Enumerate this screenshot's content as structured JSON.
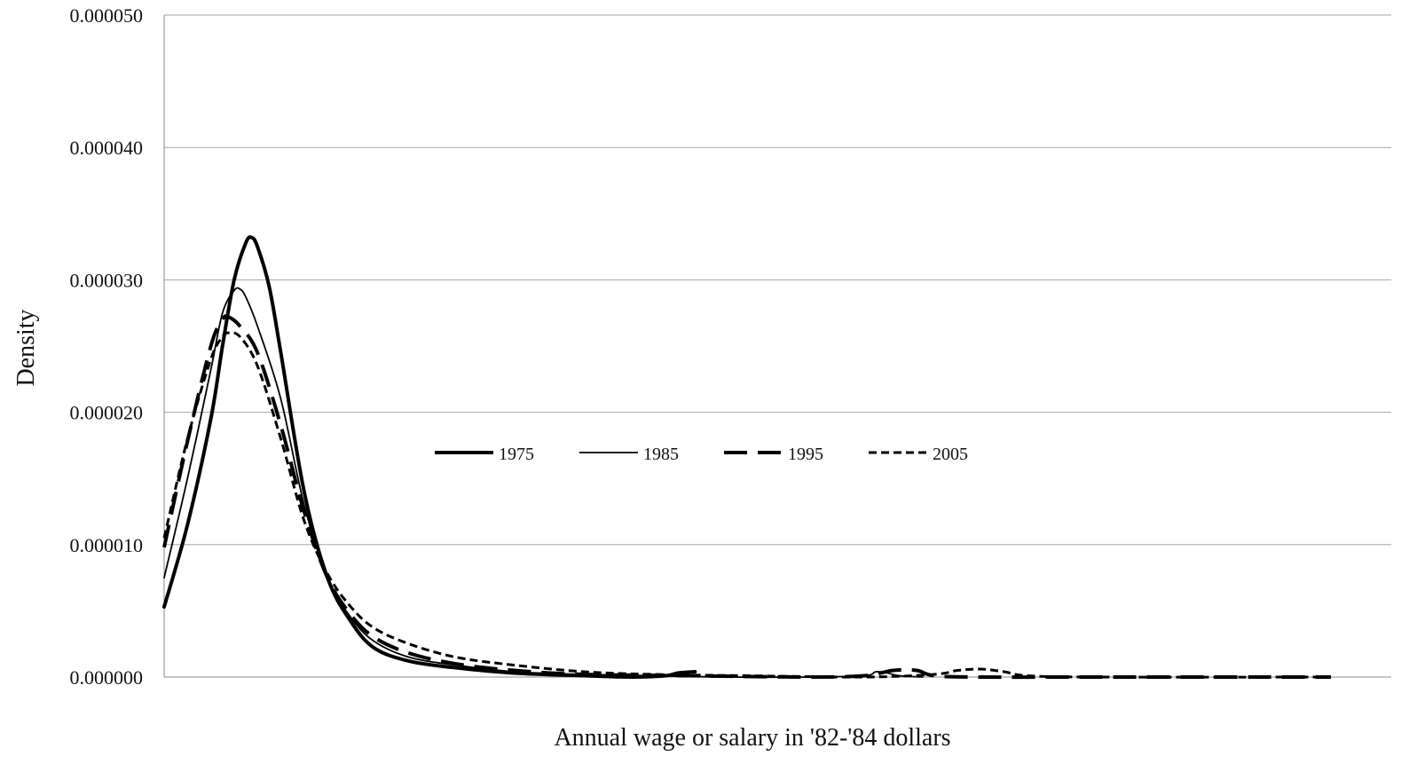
{
  "chart_data": {
    "type": "line",
    "title": "",
    "xlabel": "Annual wage or salary in '82-'84 dollars",
    "ylabel": "Density",
    "ylim": [
      0,
      5e-05
    ],
    "xlim": [
      0,
      1
    ],
    "y_ticks": [
      "0.000000",
      "0.000010",
      "0.000020",
      "0.000030",
      "0.000040",
      "0.000050"
    ],
    "y_tick_values": [
      0,
      1e-05,
      2e-05,
      3e-05,
      4e-05,
      5e-05
    ],
    "x_ticks": [],
    "grid": "horizontal",
    "legend_position": "center",
    "series": [
      {
        "name": "1975",
        "style": "solid-thick",
        "color": "#000000",
        "points": [
          [
            0.0,
            5.3e-06
          ],
          [
            0.02,
            1.15e-05
          ],
          [
            0.04,
            1.95e-05
          ],
          [
            0.05,
            2.5e-05
          ],
          [
            0.06,
            3e-05
          ],
          [
            0.07,
            3.28e-05
          ],
          [
            0.075,
            3.32e-05
          ],
          [
            0.08,
            3.25e-05
          ],
          [
            0.09,
            2.95e-05
          ],
          [
            0.1,
            2.45e-05
          ],
          [
            0.12,
            1.4e-05
          ],
          [
            0.14,
            7.5e-06
          ],
          [
            0.16,
            4.2e-06
          ],
          [
            0.18,
            2.2e-06
          ],
          [
            0.21,
            1.2e-06
          ],
          [
            0.25,
            7e-07
          ],
          [
            0.3,
            3e-07
          ],
          [
            0.36,
            1e-07
          ],
          [
            0.4,
            0.0
          ],
          [
            0.43,
            1e-07
          ],
          [
            0.44,
            3e-07
          ],
          [
            0.455,
            4e-07
          ]
        ]
      },
      {
        "name": "1985",
        "style": "solid-thin",
        "color": "#000000",
        "points": [
          [
            0.0,
            7.5e-06
          ],
          [
            0.02,
            1.5e-05
          ],
          [
            0.04,
            2.32e-05
          ],
          [
            0.05,
            2.75e-05
          ],
          [
            0.06,
            2.92e-05
          ],
          [
            0.065,
            2.93e-05
          ],
          [
            0.07,
            2.87e-05
          ],
          [
            0.08,
            2.65e-05
          ],
          [
            0.1,
            2.1e-05
          ],
          [
            0.12,
            1.3e-05
          ],
          [
            0.14,
            7.5e-06
          ],
          [
            0.16,
            4.5e-06
          ],
          [
            0.18,
            2.7e-06
          ],
          [
            0.21,
            1.5e-06
          ],
          [
            0.25,
            9e-07
          ],
          [
            0.3,
            4e-07
          ],
          [
            0.36,
            2e-07
          ],
          [
            0.42,
            1e-07
          ],
          [
            0.48,
            0.0
          ],
          [
            0.55,
            0.0
          ],
          [
            0.6,
            1e-07
          ],
          [
            0.61,
            4e-07
          ],
          [
            0.62,
            3e-07
          ],
          [
            0.63,
            1e-07
          ],
          [
            0.65,
            0.0
          ]
        ]
      },
      {
        "name": "1995",
        "style": "long-dash",
        "color": "#000000",
        "points": [
          [
            0.0,
            9.8e-06
          ],
          [
            0.02,
            1.78e-05
          ],
          [
            0.04,
            2.5e-05
          ],
          [
            0.05,
            2.7e-05
          ],
          [
            0.055,
            2.72e-05
          ],
          [
            0.065,
            2.65e-05
          ],
          [
            0.08,
            2.45e-05
          ],
          [
            0.1,
            1.9e-05
          ],
          [
            0.12,
            1.25e-05
          ],
          [
            0.14,
            7.5e-06
          ],
          [
            0.16,
            4.7e-06
          ],
          [
            0.18,
            3e-06
          ],
          [
            0.21,
            1.8e-06
          ],
          [
            0.25,
            1e-06
          ],
          [
            0.3,
            5e-07
          ],
          [
            0.36,
            2e-07
          ],
          [
            0.45,
            1e-07
          ],
          [
            0.55,
            0.0
          ],
          [
            0.6,
            1e-07
          ],
          [
            0.625,
            5e-07
          ],
          [
            0.645,
            5e-07
          ],
          [
            0.66,
            1e-07
          ],
          [
            0.7,
            0.0
          ],
          [
            0.8,
            0.0
          ],
          [
            1.0,
            0.0
          ]
        ]
      },
      {
        "name": "2005",
        "style": "short-dash",
        "color": "#000000",
        "points": [
          [
            0.0,
            1.05e-05
          ],
          [
            0.02,
            1.8e-05
          ],
          [
            0.04,
            2.4e-05
          ],
          [
            0.05,
            2.57e-05
          ],
          [
            0.055,
            2.6e-05
          ],
          [
            0.065,
            2.57e-05
          ],
          [
            0.08,
            2.35e-05
          ],
          [
            0.1,
            1.8e-05
          ],
          [
            0.12,
            1.18e-05
          ],
          [
            0.14,
            7.8e-06
          ],
          [
            0.16,
            5.3e-06
          ],
          [
            0.18,
            3.7e-06
          ],
          [
            0.21,
            2.5e-06
          ],
          [
            0.25,
            1.5e-06
          ],
          [
            0.3,
            9e-07
          ],
          [
            0.36,
            4e-07
          ],
          [
            0.42,
            2e-07
          ],
          [
            0.5,
            1e-07
          ],
          [
            0.6,
            0.0
          ],
          [
            0.66,
            2e-07
          ],
          [
            0.68,
            5e-07
          ],
          [
            0.7,
            6e-07
          ],
          [
            0.72,
            4e-07
          ],
          [
            0.74,
            1e-07
          ],
          [
            0.8,
            0.0
          ],
          [
            1.0,
            0.0
          ]
        ]
      }
    ]
  }
}
